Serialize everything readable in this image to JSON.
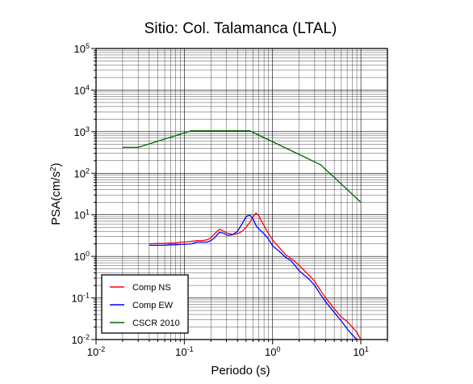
{
  "chart_data": {
    "type": "line",
    "title": "Sitio: Col. Talamanca (LTAL)",
    "xlabel": "Periodo (s)",
    "ylabel": "PSA(cm/s",
    "ylabel_sup": "2",
    "ylabel_close": ")",
    "xscale": "log",
    "yscale": "log",
    "xlim": [
      0.01,
      20
    ],
    "ylim": [
      0.01,
      100000
    ],
    "grid": true,
    "legend_position": "bottom-left",
    "x_ticks": [
      {
        "base": "10",
        "exp": "-2",
        "value": 0.01
      },
      {
        "base": "10",
        "exp": "-1",
        "value": 0.1
      },
      {
        "base": "10",
        "exp": "0",
        "value": 1
      },
      {
        "base": "10",
        "exp": "1",
        "value": 10
      }
    ],
    "y_ticks": [
      {
        "base": "10",
        "exp": "-2",
        "value": 0.01
      },
      {
        "base": "10",
        "exp": "-1",
        "value": 0.1
      },
      {
        "base": "10",
        "exp": "0",
        "value": 1
      },
      {
        "base": "10",
        "exp": "1",
        "value": 10
      },
      {
        "base": "10",
        "exp": "2",
        "value": 100
      },
      {
        "base": "10",
        "exp": "3",
        "value": 1000
      },
      {
        "base": "10",
        "exp": "4",
        "value": 10000
      },
      {
        "base": "10",
        "exp": "5",
        "value": 100000
      }
    ],
    "series": [
      {
        "name": "Comp NS",
        "color": "#ff0000",
        "x": [
          0.04,
          0.05,
          0.06,
          0.07,
          0.08,
          0.09,
          0.1,
          0.12,
          0.14,
          0.16,
          0.18,
          0.2,
          0.22,
          0.25,
          0.28,
          0.31,
          0.35,
          0.4,
          0.45,
          0.5,
          0.55,
          0.6,
          0.65,
          0.7,
          0.75,
          0.8,
          0.9,
          1.0,
          1.2,
          1.4,
          1.6,
          1.8,
          2.0,
          2.3,
          2.6,
          3.0,
          3.5,
          4.0,
          5.0,
          6.0,
          7.0,
          8.0,
          9.0,
          10.0
        ],
        "y": [
          2.0,
          2.05,
          2.05,
          2.1,
          2.1,
          2.2,
          2.2,
          2.3,
          2.4,
          2.4,
          2.5,
          2.8,
          3.5,
          4.5,
          4.0,
          3.6,
          3.4,
          3.5,
          4.0,
          5.0,
          6.5,
          9.0,
          11.0,
          9.5,
          7.0,
          5.5,
          3.5,
          2.5,
          1.6,
          1.1,
          0.9,
          0.75,
          0.6,
          0.45,
          0.35,
          0.25,
          0.15,
          0.1,
          0.055,
          0.035,
          0.027,
          0.02,
          0.015,
          0.01
        ]
      },
      {
        "name": "Comp EW",
        "color": "#0000ff",
        "x": [
          0.04,
          0.05,
          0.06,
          0.07,
          0.08,
          0.09,
          0.1,
          0.12,
          0.14,
          0.16,
          0.18,
          0.2,
          0.22,
          0.25,
          0.28,
          0.31,
          0.35,
          0.4,
          0.45,
          0.5,
          0.55,
          0.6,
          0.65,
          0.7,
          0.75,
          0.8,
          0.9,
          1.0,
          1.2,
          1.4,
          1.6,
          1.8,
          2.0,
          2.3,
          2.6,
          3.0,
          3.5,
          4.0,
          5.0,
          6.0,
          7.0,
          8.0,
          9.0
        ],
        "y": [
          1.85,
          1.85,
          1.85,
          1.9,
          1.9,
          1.95,
          1.95,
          2.0,
          2.2,
          2.2,
          2.2,
          2.4,
          2.8,
          3.8,
          3.6,
          3.2,
          3.3,
          4.0,
          6.0,
          9.0,
          10.0,
          8.0,
          5.5,
          4.5,
          4.0,
          3.5,
          2.6,
          1.8,
          1.3,
          0.95,
          0.8,
          0.6,
          0.45,
          0.35,
          0.28,
          0.2,
          0.12,
          0.08,
          0.045,
          0.028,
          0.018,
          0.013,
          0.01
        ]
      },
      {
        "name": "CSCR 2010",
        "color": "#006400",
        "x": [
          0.02,
          0.03,
          0.12,
          0.55,
          3.5,
          10.0
        ],
        "y": [
          420,
          420,
          1050,
          1050,
          160,
          20
        ]
      }
    ]
  }
}
